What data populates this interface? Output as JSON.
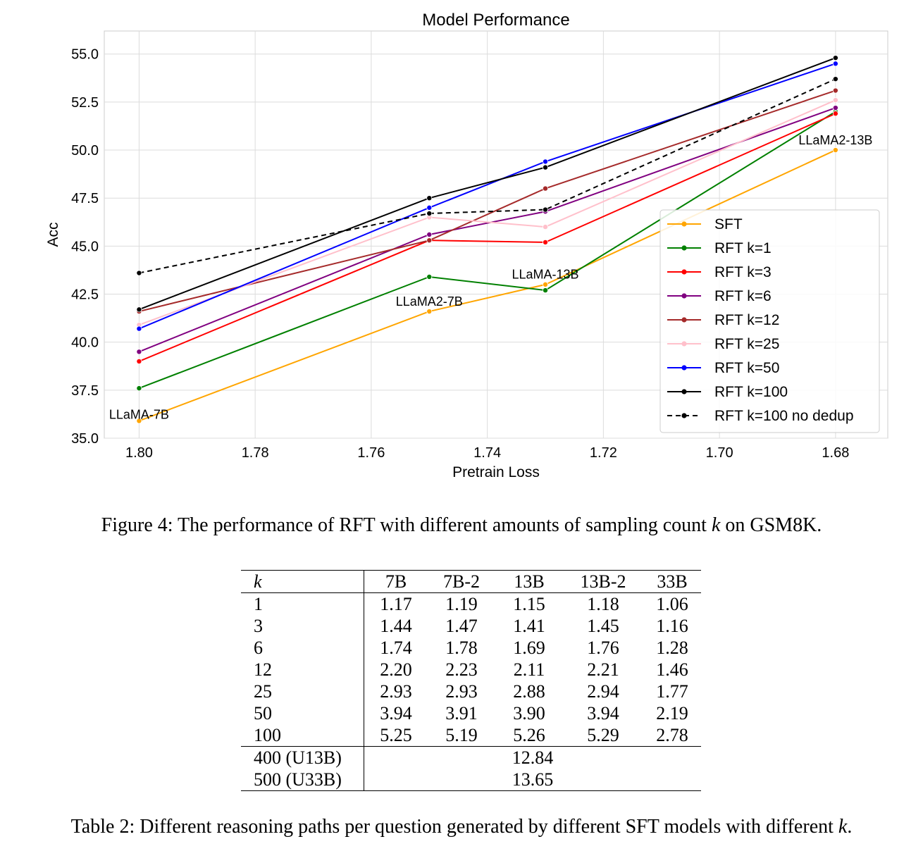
{
  "chart_data": {
    "type": "line",
    "title": "Model Performance",
    "xlabel": "Pretrain Loss",
    "ylabel": "Acc",
    "x": [
      1.8,
      1.75,
      1.73,
      1.68
    ],
    "xlim": [
      1.806,
      1.671
    ],
    "x_inverted": true,
    "ylim": [
      35.0,
      56.2
    ],
    "xticks": [
      "1.80",
      "1.78",
      "1.76",
      "1.74",
      "1.72",
      "1.70",
      "1.68"
    ],
    "yticks": [
      "35.0",
      "37.5",
      "40.0",
      "42.5",
      "45.0",
      "47.5",
      "50.0",
      "52.5",
      "55.0"
    ],
    "grid": true,
    "legend_position": "lower-right",
    "series": [
      {
        "name": "SFT",
        "color": "#ffa500",
        "dash": "solid",
        "values": [
          35.9,
          41.6,
          43.0,
          50.0
        ]
      },
      {
        "name": "RFT k=1",
        "color": "#008000",
        "dash": "solid",
        "values": [
          37.6,
          43.4,
          42.7,
          52.0
        ]
      },
      {
        "name": "RFT k=3",
        "color": "#ff0000",
        "dash": "solid",
        "values": [
          39.0,
          45.3,
          45.2,
          51.9
        ]
      },
      {
        "name": "RFT k=6",
        "color": "#800080",
        "dash": "solid",
        "values": [
          39.5,
          45.6,
          46.8,
          52.2
        ]
      },
      {
        "name": "RFT k=12",
        "color": "#a52a2a",
        "dash": "solid",
        "values": [
          41.6,
          45.3,
          48.0,
          53.1
        ]
      },
      {
        "name": "RFT k=25",
        "color": "#ffc0cb",
        "dash": "solid",
        "values": [
          40.9,
          46.5,
          46.0,
          52.6
        ]
      },
      {
        "name": "RFT k=50",
        "color": "#0000ff",
        "dash": "solid",
        "values": [
          40.7,
          47.0,
          49.4,
          54.5
        ]
      },
      {
        "name": "RFT k=100",
        "color": "#000000",
        "dash": "solid",
        "values": [
          41.7,
          47.5,
          49.1,
          54.8
        ]
      },
      {
        "name": "RFT k=100 no dedup",
        "color": "#000000",
        "dash": "dashed",
        "values": [
          43.6,
          46.7,
          46.9,
          53.7
        ]
      }
    ],
    "annotations": [
      {
        "text": "LLaMA-7B",
        "x": 1.8,
        "y": 36.0
      },
      {
        "text": "LLaMA2-7B",
        "x": 1.75,
        "y": 41.9
      },
      {
        "text": "LLaMA-13B",
        "x": 1.73,
        "y": 43.3
      },
      {
        "text": "LLaMA2-13B",
        "x": 1.68,
        "y": 50.3
      }
    ]
  },
  "figure_caption": {
    "prefix": "Figure 4: The performance of RFT with different amounts of sampling count ",
    "k": "k",
    "suffix": " on GSM8K."
  },
  "table": {
    "header": [
      "k",
      "7B",
      "7B-2",
      "13B",
      "13B-2",
      "33B"
    ],
    "rows": [
      [
        "1",
        "1.17",
        "1.19",
        "1.15",
        "1.18",
        "1.06"
      ],
      [
        "3",
        "1.44",
        "1.47",
        "1.41",
        "1.45",
        "1.16"
      ],
      [
        "6",
        "1.74",
        "1.78",
        "1.69",
        "1.76",
        "1.28"
      ],
      [
        "12",
        "2.20",
        "2.23",
        "2.11",
        "2.21",
        "1.46"
      ],
      [
        "25",
        "2.93",
        "2.93",
        "2.88",
        "2.94",
        "1.77"
      ],
      [
        "50",
        "3.94",
        "3.91",
        "3.90",
        "3.94",
        "2.19"
      ],
      [
        "100",
        "5.25",
        "5.19",
        "5.26",
        "5.29",
        "2.78"
      ]
    ],
    "extra_rows": [
      [
        "400 (U13B)",
        "12.84"
      ],
      [
        "500 (U33B)",
        "13.65"
      ]
    ]
  },
  "table_caption": {
    "prefix": "Table 2: Different reasoning paths per question generated by different SFT models with different ",
    "k": "k",
    "suffix": "."
  }
}
